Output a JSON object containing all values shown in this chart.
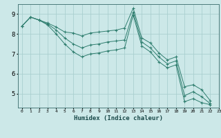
{
  "xlabel": "Humidex (Indice chaleur)",
  "ylabel": "",
  "bg_color": "#cce8e8",
  "grid_color": "#aad0d0",
  "line_color": "#2e7d6e",
  "xlim": [
    -0.5,
    23
  ],
  "ylim": [
    4.3,
    9.5
  ],
  "xticks": [
    0,
    1,
    2,
    3,
    4,
    5,
    6,
    7,
    8,
    9,
    10,
    11,
    12,
    13,
    14,
    15,
    16,
    17,
    18,
    19,
    20,
    21,
    22,
    23
  ],
  "yticks": [
    5,
    6,
    7,
    8,
    9
  ],
  "lines": [
    [
      8.4,
      8.85,
      8.7,
      8.55,
      8.35,
      8.1,
      8.05,
      7.9,
      8.05,
      8.1,
      8.15,
      8.2,
      8.3,
      9.3,
      7.8,
      7.55,
      7.05,
      6.7,
      6.85,
      5.35,
      5.45,
      5.2,
      4.65
    ],
    [
      8.4,
      8.85,
      8.7,
      8.5,
      8.2,
      7.8,
      7.5,
      7.3,
      7.45,
      7.5,
      7.6,
      7.65,
      7.7,
      9.1,
      7.6,
      7.3,
      6.85,
      6.5,
      6.65,
      4.9,
      5.1,
      4.85,
      4.5
    ],
    [
      8.4,
      8.85,
      8.7,
      8.45,
      8.0,
      7.5,
      7.1,
      6.85,
      7.0,
      7.05,
      7.15,
      7.2,
      7.3,
      8.95,
      7.4,
      7.1,
      6.6,
      6.3,
      6.45,
      4.6,
      4.75,
      4.55,
      4.45
    ]
  ]
}
